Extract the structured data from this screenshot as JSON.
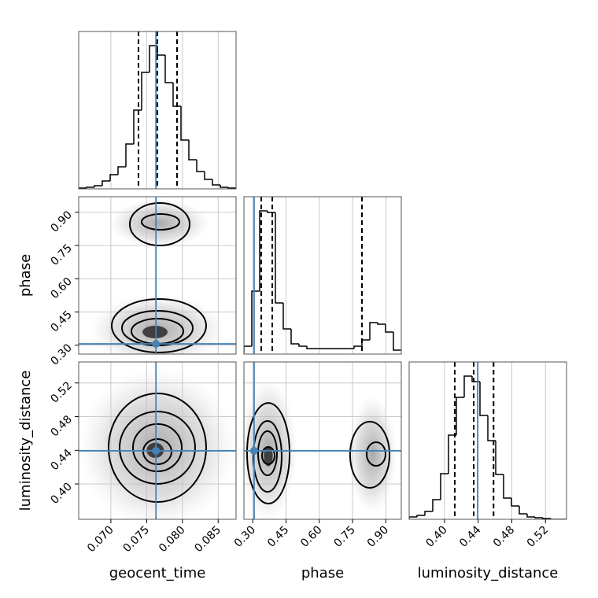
{
  "chart_data": {
    "type": "corner",
    "grid": true,
    "hist_color": "#000000",
    "truth_color": "#4682b4",
    "contour_color": "#000000",
    "hist_ylim": [
      0,
      200
    ],
    "parameters": [
      {
        "name": "geocent_time",
        "lim": [
          0.0655,
          0.0875
        ],
        "ticks": [
          {
            "value": 0.07,
            "label": "0.070"
          },
          0.075,
          {
            "value": 0.08,
            "label": "0.080"
          },
          0.085
        ],
        "truth": 0.0763,
        "quantiles": [
          0.07386,
          0.0765,
          0.07925
        ],
        "bins": [
          0.0655,
          0.0666,
          0.0677,
          0.0688,
          0.0699,
          0.071,
          0.0721,
          0.0732,
          0.0743,
          0.0754,
          0.0765,
          0.0776,
          0.0787,
          0.0798,
          0.0809,
          0.082,
          0.0831,
          0.0842,
          0.0853,
          0.0864,
          0.0875
        ],
        "counts": [
          1,
          2,
          4,
          10,
          18,
          28,
          57,
          100,
          148,
          182,
          170,
          135,
          105,
          62,
          37,
          22,
          12,
          5,
          2,
          1
        ]
      },
      {
        "name": "phase",
        "lim": [
          0.26,
          0.97
        ],
        "ticks": [
          {
            "value": 0.3,
            "label": "0.30"
          },
          0.45,
          {
            "value": 0.6,
            "label": "0.60"
          },
          0.75,
          {
            "value": 0.9,
            "label": "0.90"
          }
        ],
        "truth": 0.306,
        "quantiles": [
          0.338,
          0.388,
          0.7925
        ],
        "bins": [
          0.26,
          0.2955,
          0.331,
          0.3665,
          0.402,
          0.4375,
          0.473,
          0.5085,
          0.544,
          0.5795,
          0.615,
          0.6505,
          0.686,
          0.7215,
          0.757,
          0.7925,
          0.828,
          0.8635,
          0.899,
          0.9345,
          0.97
        ],
        "counts": [
          10,
          80,
          182,
          180,
          65,
          32,
          13,
          10,
          7,
          7,
          7,
          7,
          7,
          7,
          10,
          18,
          40,
          38,
          28,
          5
        ]
      },
      {
        "name": "luminosity_distance",
        "lim": [
          0.358,
          0.545
        ],
        "ticks": [
          {
            "value": 0.4,
            "label": "0.40"
          },
          0.44,
          0.48,
          0.52
        ],
        "truth": 0.4394,
        "quantiles": [
          0.4122,
          0.4347,
          0.4583
        ],
        "bins": [
          0.358,
          0.36735,
          0.3767,
          0.38605,
          0.3954,
          0.40475,
          0.4141,
          0.42345,
          0.4328,
          0.44215,
          0.4515,
          0.46085,
          0.4702,
          0.47955,
          0.4889,
          0.49825,
          0.5076,
          0.51695,
          0.5263,
          0.53565,
          0.545
        ],
        "counts": [
          3,
          5,
          10,
          25,
          58,
          107,
          155,
          182,
          175,
          132,
          100,
          57,
          27,
          17,
          7,
          3,
          2,
          1,
          0,
          0
        ]
      }
    ],
    "pairs": [
      {
        "xparam": 0,
        "yparam": 1,
        "clouds": [
          {
            "x": 0.0765,
            "y": 0.37,
            "rx": 0.0095,
            "ry": 0.16
          },
          {
            "x": 0.0768,
            "y": 0.85,
            "rx": 0.007,
            "ry": 0.11
          }
        ],
        "contours": [
          {
            "x": 0.07672,
            "y": 0.3878,
            "rx": 0.0066,
            "ry": 0.1207
          },
          {
            "x": 0.0765,
            "y": 0.3772,
            "rx": 0.00495,
            "ry": 0.0781
          },
          {
            "x": 0.0765,
            "y": 0.363,
            "rx": 0.00363,
            "ry": 0.0568
          },
          {
            "x": 0.07683,
            "y": 0.8458,
            "rx": 0.00418,
            "ry": 0.0959
          },
          {
            "x": 0.07694,
            "y": 0.8564,
            "rx": 0.00264,
            "ry": 0.0355
          }
        ],
        "cores": [
          {
            "x": 0.07617,
            "y": 0.3594,
            "rx": 0.00176,
            "ry": 0.0284
          }
        ]
      },
      {
        "xparam": 0,
        "yparam": 2,
        "clouds": [
          {
            "x": 0.0765,
            "y": 0.443,
            "rx": 0.011,
            "ry": 0.095
          }
        ],
        "contours": [
          {
            "x": 0.0765,
            "y": 0.4431,
            "rx": 0.00682,
            "ry": 0.0645
          },
          {
            "x": 0.0765,
            "y": 0.4431,
            "rx": 0.00528,
            "ry": 0.043
          },
          {
            "x": 0.0765,
            "y": 0.4431,
            "rx": 0.00341,
            "ry": 0.0281
          },
          {
            "x": 0.0765,
            "y": 0.4384,
            "rx": 0.00198,
            "ry": 0.015
          }
        ],
        "cores": [
          {
            "x": 0.0762,
            "y": 0.44,
            "rx": 0.0012,
            "ry": 0.009
          }
        ]
      },
      {
        "xparam": 1,
        "yparam": 2,
        "clouds": [
          {
            "x": 0.37,
            "y": 0.44,
            "rx": 0.13,
            "ry": 0.085
          },
          {
            "x": 0.84,
            "y": 0.435,
            "rx": 0.11,
            "ry": 0.07
          }
        ],
        "contours": [
          {
            "x": 0.3701,
            "y": 0.4365,
            "rx": 0.0959,
            "ry": 0.0598
          },
          {
            "x": 0.3665,
            "y": 0.4328,
            "rx": 0.0639,
            "ry": 0.0421
          },
          {
            "x": 0.3665,
            "y": 0.4365,
            "rx": 0.0426,
            "ry": 0.0262
          },
          {
            "x": 0.3701,
            "y": 0.4337,
            "rx": 0.0284,
            "ry": 0.0103
          },
          {
            "x": 0.828,
            "y": 0.4347,
            "rx": 0.0888,
            "ry": 0.0393
          },
          {
            "x": 0.8564,
            "y": 0.4356,
            "rx": 0.0426,
            "ry": 0.014
          }
        ],
        "cores": [
          {
            "x": 0.37,
            "y": 0.433,
            "rx": 0.02,
            "ry": 0.012
          }
        ]
      }
    ]
  }
}
